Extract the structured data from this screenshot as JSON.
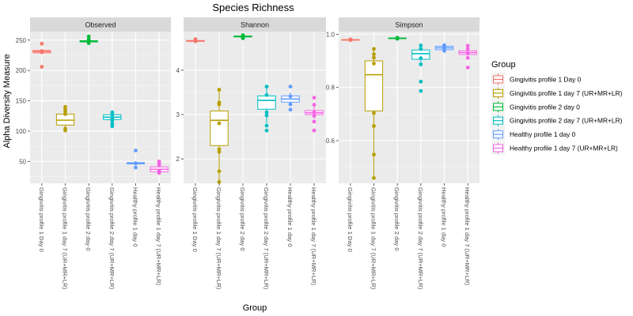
{
  "chart_data": {
    "type": "box",
    "title": "Species Richness",
    "xlabel": "Group",
    "ylabel": "Alpha Diversity Measure",
    "legend_title": "Group",
    "legend_position": "right",
    "grid": true,
    "groups": [
      {
        "name": "Gingivitis profile 1 Day 0",
        "color": "#F8766D"
      },
      {
        "name": "Gingivitis profile 1 day 7 (UR+MR+LR)",
        "color": "#B79F00"
      },
      {
        "name": "Gingivitis profile 2 day 0",
        "color": "#00BA38"
      },
      {
        "name": "Gingivitis profile 2 day 7 (UR+MR+LR)",
        "color": "#00BFC4"
      },
      {
        "name": "Healthy profile 1 day 0",
        "color": "#619CFF"
      },
      {
        "name": "Healthy profile 1 day 7 (UR+MR+LR)",
        "color": "#F564E3"
      }
    ],
    "panels": [
      {
        "name": "Observed",
        "ylim": [
          14,
          264
        ],
        "yticks": [
          50,
          100,
          150,
          200,
          250
        ],
        "boxes": [
          {
            "min": 228,
            "q1": 229,
            "median": 231,
            "q3": 233,
            "max": 235,
            "points": [
              244,
              232,
              230,
              206
            ]
          },
          {
            "min": 100,
            "q1": 110,
            "median": 118,
            "q3": 128,
            "max": 140,
            "points": [
              140,
              136,
              132,
              128,
              104,
              101
            ]
          },
          {
            "min": 246,
            "q1": 247,
            "median": 248,
            "q3": 249,
            "max": 250,
            "points": [
              256,
              251,
              247,
              245
            ]
          },
          {
            "min": 115,
            "q1": 119,
            "median": 123,
            "q3": 127,
            "max": 131,
            "points": [
              131,
              127,
              121,
              117,
              112,
              108
            ]
          },
          {
            "min": 46,
            "q1": 46,
            "median": 47,
            "q3": 48,
            "max": 48,
            "points": [
              68,
              47,
              47,
              40
            ]
          },
          {
            "min": 30,
            "q1": 33,
            "median": 37,
            "q3": 41,
            "max": 46,
            "points": [
              50,
              46,
              44,
              35,
              31
            ]
          }
        ]
      },
      {
        "name": "Shannon",
        "ylim": [
          1.45,
          4.87
        ],
        "yticks": [
          2,
          3,
          4
        ],
        "boxes": [
          {
            "min": 4.64,
            "q1": 4.65,
            "median": 4.66,
            "q3": 4.67,
            "max": 4.68,
            "points": [
              4.7,
              4.66,
              4.65
            ]
          },
          {
            "min": 1.48,
            "q1": 2.3,
            "median": 2.87,
            "q3": 3.08,
            "max": 3.56,
            "points": [
              3.56,
              3.27,
              3.23,
              2.8,
              2.22,
              2.16,
              1.72,
              1.48
            ]
          },
          {
            "min": 4.74,
            "q1": 4.75,
            "median": 4.76,
            "q3": 4.77,
            "max": 4.78,
            "points": [
              4.79,
              4.76,
              4.74,
              4.72
            ]
          },
          {
            "min": 2.8,
            "q1": 3.12,
            "median": 3.32,
            "q3": 3.42,
            "max": 3.63,
            "points": [
              3.63,
              3.44,
              3.05,
              2.98,
              2.75,
              2.64
            ]
          },
          {
            "min": 3.2,
            "q1": 3.28,
            "median": 3.35,
            "q3": 3.42,
            "max": 3.5,
            "points": [
              3.63,
              3.41,
              3.23,
              3.11
            ]
          },
          {
            "min": 2.9,
            "q1": 3.0,
            "median": 3.04,
            "q3": 3.09,
            "max": 3.18,
            "points": [
              3.38,
              3.22,
              3.05,
              2.97,
              2.84,
              2.64
            ]
          }
        ]
      },
      {
        "name": "Simpson",
        "ylim": [
          0.44,
          1.01
        ],
        "yticks": [
          0.6,
          0.8,
          1.0
        ],
        "boxes": [
          {
            "min": 0.977,
            "q1": 0.978,
            "median": 0.979,
            "q3": 0.98,
            "max": 0.981,
            "points": [
              0.981,
              0.979,
              0.978
            ]
          },
          {
            "min": 0.46,
            "q1": 0.712,
            "median": 0.848,
            "q3": 0.9,
            "max": 0.945,
            "points": [
              0.945,
              0.925,
              0.912,
              0.89,
              0.704,
              0.655,
              0.548,
              0.46
            ]
          },
          {
            "min": 0.983,
            "q1": 0.984,
            "median": 0.985,
            "q3": 0.986,
            "max": 0.987,
            "points": [
              0.987,
              0.985,
              0.983
            ]
          },
          {
            "min": 0.895,
            "q1": 0.906,
            "median": 0.927,
            "q3": 0.941,
            "max": 0.958,
            "points": [
              0.958,
              0.945,
              0.91,
              0.887,
              0.822,
              0.787
            ]
          },
          {
            "min": 0.939,
            "q1": 0.942,
            "median": 0.949,
            "q3": 0.955,
            "max": 0.959,
            "points": [
              0.959,
              0.954,
              0.947,
              0.938
            ]
          },
          {
            "min": 0.914,
            "q1": 0.924,
            "median": 0.931,
            "q3": 0.938,
            "max": 0.95,
            "points": [
              0.957,
              0.945,
              0.929,
              0.911,
              0.875
            ]
          }
        ]
      }
    ]
  }
}
